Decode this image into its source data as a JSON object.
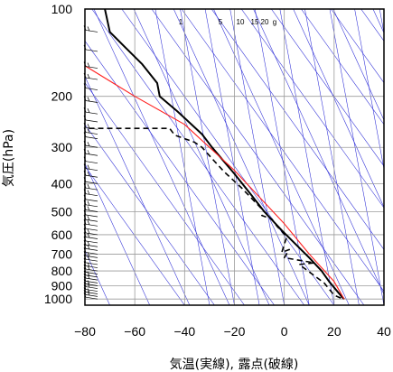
{
  "chart_data": {
    "type": "line",
    "title": "",
    "xlabel": "気温(実線), 露点(破線)",
    "ylabel": "気圧(hPa)",
    "xlim": [
      -80,
      40
    ],
    "ylim": [
      1050,
      100
    ],
    "y_scale": "log",
    "x_ticks": [
      -80,
      -60,
      -40,
      -20,
      0,
      20,
      40
    ],
    "x_tick_labels": [
      "−80",
      "−60",
      "−40",
      "−20",
      "0",
      "20",
      "40"
    ],
    "y_ticks": [
      100,
      200,
      300,
      400,
      500,
      600,
      700,
      800,
      900,
      1000
    ],
    "y_tick_labels": [
      "100",
      "200",
      "300",
      "400",
      "500",
      "600",
      "700",
      "800",
      "900",
      "1000"
    ],
    "grid": true,
    "mixing_ratio_labels": [
      "1",
      "5",
      "10",
      "15",
      "20",
      "g"
    ],
    "series": [
      {
        "style": "solid-black",
        "points": [
          [
            -72,
            100
          ],
          [
            -70,
            120
          ],
          [
            -64,
            135
          ],
          [
            -57,
            155
          ],
          [
            -51,
            180
          ],
          [
            -50,
            200
          ],
          [
            -43,
            225
          ],
          [
            -33,
            270
          ],
          [
            -29,
            300
          ],
          [
            -20,
            370
          ],
          [
            -13,
            440
          ],
          [
            -8,
            500
          ],
          [
            -1,
            580
          ],
          [
            4,
            640
          ],
          [
            10,
            720
          ],
          [
            15,
            800
          ],
          [
            18,
            870
          ],
          [
            23,
            980
          ],
          [
            24,
            1000
          ]
        ]
      },
      {
        "style": "dashed-black",
        "points": [
          [
            -82,
            258
          ],
          [
            -46,
            258
          ],
          [
            -44,
            272
          ],
          [
            -36,
            288
          ],
          [
            -33,
            300
          ],
          [
            -28,
            335
          ],
          [
            -24,
            365
          ],
          [
            -17,
            415
          ],
          [
            -12,
            460
          ],
          [
            -7,
            510
          ],
          [
            -9,
            515
          ],
          [
            -5,
            530
          ],
          [
            -3,
            560
          ],
          [
            1,
            610
          ],
          [
            -1,
            690
          ],
          [
            2,
            675
          ],
          [
            0,
            720
          ],
          [
            12,
            750
          ],
          [
            6,
            760
          ],
          [
            16,
            880
          ],
          [
            20,
            970
          ],
          [
            23,
            995
          ]
        ]
      },
      {
        "style": "solid-red",
        "points": [
          [
            -81,
            155
          ],
          [
            -60,
            200
          ],
          [
            -40,
            250
          ],
          [
            -20,
            360
          ],
          [
            0,
            550
          ],
          [
            10,
            700
          ],
          [
            20,
            870
          ],
          [
            24,
            1000
          ]
        ]
      }
    ],
    "wind_barbs": {
      "x": -80,
      "pressures": [
        120,
        140,
        160,
        175,
        190,
        210,
        230,
        245,
        260,
        270,
        280,
        300,
        320,
        340,
        360,
        380,
        400,
        420,
        440,
        460,
        480,
        500,
        520,
        540,
        560,
        580,
        600,
        620,
        640,
        660,
        680,
        700,
        720,
        740,
        760,
        780,
        800,
        820,
        840,
        860,
        880,
        900,
        920,
        940,
        960,
        980,
        1000
      ]
    },
    "colors": {
      "temperature": "#000000",
      "dewpoint": "#000000",
      "parcel": "#ff2020",
      "guides": "#2b2bd6",
      "grid": "#9a9a9a"
    }
  }
}
